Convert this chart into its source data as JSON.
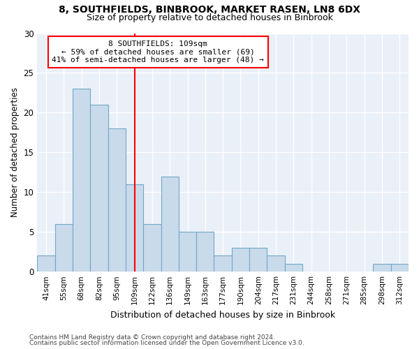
{
  "title1": "8, SOUTHFIELDS, BINBROOK, MARKET RASEN, LN8 6DX",
  "title2": "Size of property relative to detached houses in Binbrook",
  "xlabel": "Distribution of detached houses by size in Binbrook",
  "ylabel": "Number of detached properties",
  "bar_labels": [
    "41sqm",
    "55sqm",
    "68sqm",
    "82sqm",
    "95sqm",
    "109sqm",
    "122sqm",
    "136sqm",
    "149sqm",
    "163sqm",
    "177sqm",
    "190sqm",
    "204sqm",
    "217sqm",
    "231sqm",
    "244sqm",
    "258sqm",
    "271sqm",
    "285sqm",
    "298sqm",
    "312sqm"
  ],
  "bar_values": [
    2,
    6,
    23,
    21,
    18,
    11,
    6,
    12,
    5,
    5,
    2,
    3,
    3,
    2,
    1,
    0,
    0,
    0,
    0,
    1,
    1
  ],
  "bar_color": "#c9daea",
  "bar_edge_color": "#6fa8c8",
  "vline_x": 5,
  "vline_color": "red",
  "annotation_text": "8 SOUTHFIELDS: 109sqm\n← 59% of detached houses are smaller (69)\n41% of semi-detached houses are larger (48) →",
  "annotation_box_color": "white",
  "annotation_box_edge_color": "red",
  "ylim": [
    0,
    30
  ],
  "yticks": [
    0,
    5,
    10,
    15,
    20,
    25,
    30
  ],
  "footer1": "Contains HM Land Registry data © Crown copyright and database right 2024.",
  "footer2": "Contains public sector information licensed under the Open Government Licence v3.0.",
  "bg_color": "#ffffff",
  "plot_bg_color": "#eaf0f8",
  "grid_color": "#ffffff"
}
